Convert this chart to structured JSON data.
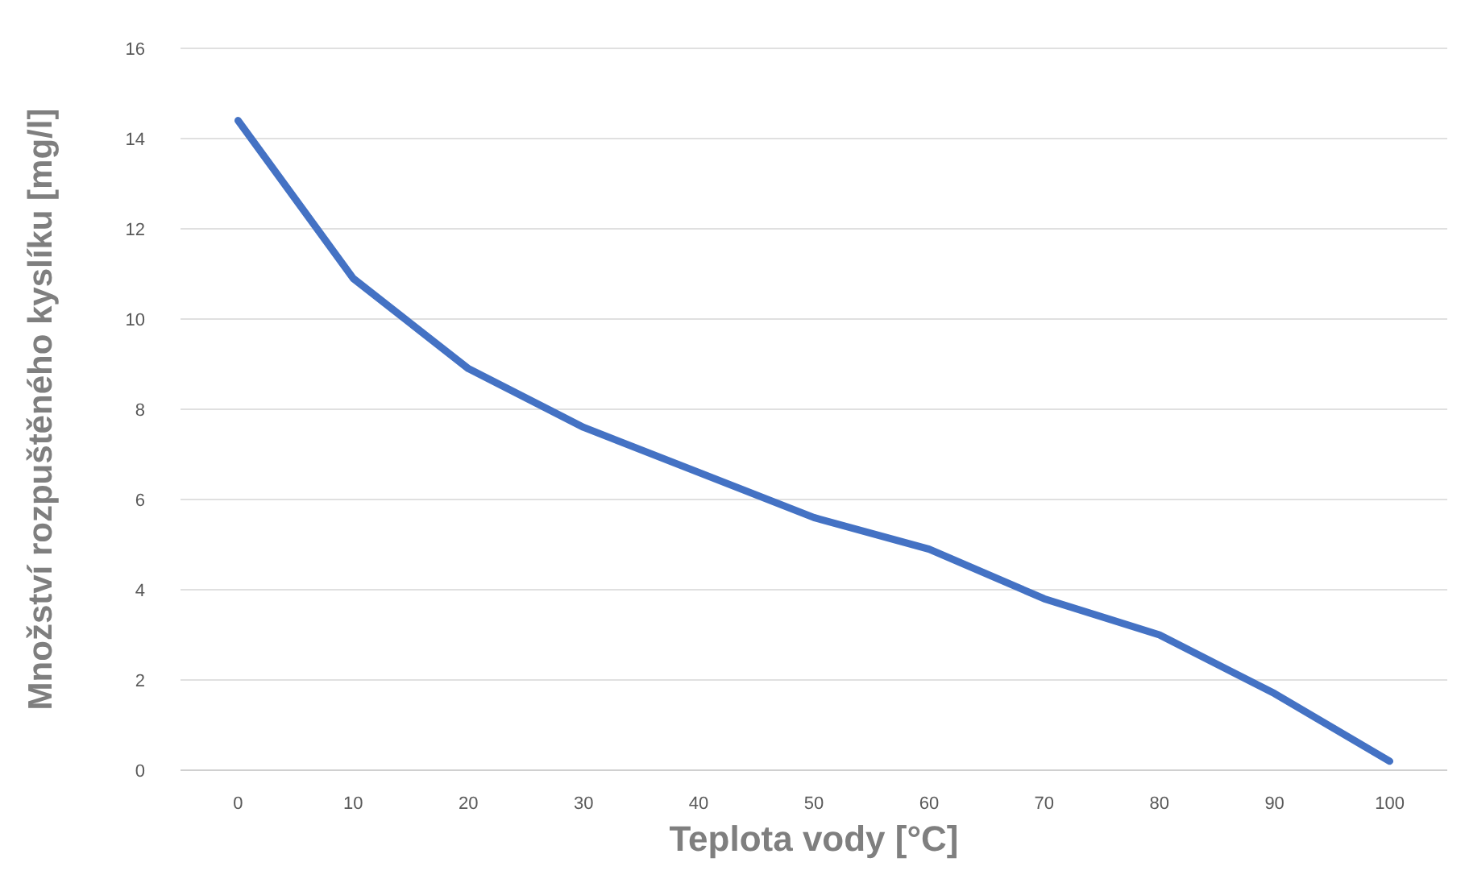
{
  "chart_data": {
    "type": "line",
    "xlabel": "Teplota vody [°C]",
    "ylabel": "Množství rozpuštěného kyslíku [mg/l]",
    "categories": [
      "0",
      "10",
      "20",
      "30",
      "40",
      "50",
      "60",
      "70",
      "80",
      "90",
      "100"
    ],
    "series": [
      {
        "color": "#4472c4",
        "values": [
          14.4,
          10.9,
          8.9,
          7.6,
          6.6,
          5.6,
          4.9,
          3.8,
          3.0,
          1.7,
          0.2
        ]
      }
    ],
    "ylim": [
      0,
      16
    ],
    "yticks": [
      0,
      2,
      4,
      6,
      8,
      10,
      12,
      14,
      16
    ],
    "grid": "y",
    "marker": "none",
    "line_style": "solid"
  }
}
